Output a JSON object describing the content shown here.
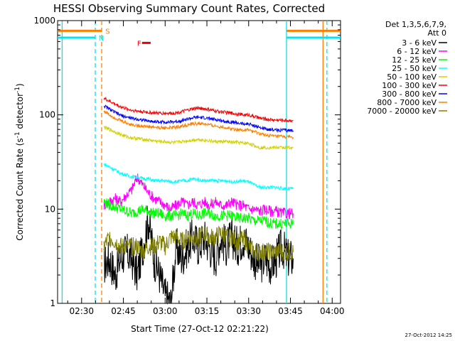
{
  "chart_data": {
    "type": "line",
    "title": "HESSI Observing Summary Count Rates, Corrected",
    "xlabel": "Start Time (27-Oct-12 02:21:22)",
    "ylabel_main": "Corrected Count Rate (s",
    "ylabel_sup": "-1",
    "ylabel_tail": " detector",
    "ylabel_close": ")",
    "timestamp": "27-Oct-2012 14:25",
    "x_start_minutes": 141.37,
    "xlim": [
      141.37,
      243.0
    ],
    "ylim": [
      1,
      1000
    ],
    "ylog": true,
    "x_ticks": [
      {
        "v": 150,
        "label": "02:30"
      },
      {
        "v": 165,
        "label": "02:45"
      },
      {
        "v": 180,
        "label": "03:00"
      },
      {
        "v": 195,
        "label": "03:15"
      },
      {
        "v": 210,
        "label": "03:30"
      },
      {
        "v": 225,
        "label": "03:45"
      },
      {
        "v": 240,
        "label": "04:00"
      }
    ],
    "y_ticks": [
      {
        "v": 1,
        "label": "1"
      },
      {
        "v": 10,
        "label": "10"
      },
      {
        "v": 100,
        "label": "100"
      },
      {
        "v": 1000,
        "label": "1000"
      }
    ],
    "legend_title": [
      "Det 1,3,5,6,7,9,",
      "Att 0"
    ],
    "flags": [
      {
        "label": "S",
        "color": "#ff7f00",
        "segments": [
          [
            141.37,
            157.3
          ],
          [
            223.6,
            243.0
          ]
        ],
        "value": 780
      },
      {
        "label": "N",
        "color": "#00e5ee",
        "segments": [
          [
            141.37,
            155.0
          ],
          [
            223.6,
            243.0
          ]
        ],
        "value": 660
      },
      {
        "label": "F",
        "color": "#ee0000",
        "segments": [
          [
            171.7,
            174.8
          ]
        ],
        "value": 580
      }
    ],
    "gaps": [
      {
        "x": 143.0,
        "color": "#00e5ee",
        "style": "solid"
      },
      {
        "x": 154.9,
        "color": "#00e5ee",
        "style": "dashed"
      },
      {
        "x": 157.2,
        "color": "#ff7f00",
        "style": "dashed"
      },
      {
        "x": 223.6,
        "color": "#00e5ee",
        "style": "solid"
      },
      {
        "x": 236.7,
        "color": "#ff7f00",
        "style": "solid"
      },
      {
        "x": 238.1,
        "color": "#00e5ee",
        "style": "dashed"
      }
    ],
    "series": [
      {
        "name": "3 - 6 keV",
        "color": "#000000",
        "x": [
          158,
          160,
          162,
          164,
          166,
          168,
          170,
          172,
          174,
          176,
          178,
          180,
          182,
          184,
          186,
          188,
          190,
          192,
          194,
          196,
          198,
          200,
          202,
          204,
          206,
          208,
          210,
          212,
          214,
          216,
          218,
          220,
          222,
          224,
          226
        ],
        "values": [
          2.5,
          3,
          2,
          3,
          3.5,
          3,
          2,
          4,
          8,
          3,
          2,
          1.2,
          1,
          4,
          3,
          4,
          5,
          4,
          5,
          4,
          3,
          5,
          4,
          5,
          4,
          5,
          4,
          3,
          2.5,
          3,
          2.5,
          3,
          4,
          3,
          3
        ]
      },
      {
        "name": "6 - 12 keV",
        "color": "#ff00ff",
        "x": [
          158,
          160,
          162,
          164,
          166,
          168,
          170,
          172,
          174,
          176,
          178,
          180,
          182,
          184,
          186,
          188,
          190,
          192,
          194,
          196,
          198,
          200,
          202,
          204,
          206,
          208,
          210,
          212,
          214,
          216,
          218,
          220,
          222,
          224,
          226
        ],
        "values": [
          11,
          12,
          13,
          12,
          14,
          16,
          22,
          18,
          15,
          13,
          12,
          11,
          10,
          11,
          12,
          11,
          12,
          11,
          12,
          11,
          12,
          11,
          11,
          12,
          11,
          11,
          10,
          10,
          9.5,
          10,
          9.5,
          9.5,
          9,
          9,
          9
        ]
      },
      {
        "name": "12 - 25 keV",
        "color": "#00ff00",
        "x": [
          158,
          160,
          162,
          164,
          166,
          168,
          170,
          172,
          174,
          176,
          178,
          180,
          182,
          184,
          186,
          188,
          190,
          192,
          194,
          196,
          198,
          200,
          202,
          204,
          206,
          208,
          210,
          212,
          214,
          216,
          218,
          220,
          222,
          224,
          226
        ],
        "values": [
          12,
          11,
          10.5,
          10,
          9.5,
          9,
          9.5,
          10,
          9.5,
          9,
          9,
          8.5,
          8.5,
          8.5,
          9,
          8.5,
          9,
          8.5,
          9,
          9,
          8.5,
          8.5,
          8.5,
          8.5,
          8,
          8,
          8,
          7.5,
          7.5,
          7.5,
          7,
          7,
          7,
          7,
          7
        ]
      },
      {
        "name": "25 - 50 keV",
        "color": "#00ffff",
        "x": [
          158,
          160,
          162,
          164,
          166,
          168,
          170,
          172,
          174,
          176,
          178,
          180,
          182,
          184,
          186,
          188,
          190,
          192,
          194,
          196,
          198,
          200,
          202,
          204,
          206,
          208,
          210,
          212,
          214,
          216,
          218,
          220,
          222,
          224,
          226
        ],
        "values": [
          30,
          28,
          26,
          24,
          23,
          22,
          22,
          21,
          21,
          20,
          20,
          20,
          19.5,
          19.5,
          20,
          20,
          21,
          20.5,
          20,
          20,
          20,
          20,
          20,
          19.5,
          19.5,
          20,
          19.5,
          18,
          17,
          17,
          17,
          17,
          16.5,
          16.5,
          16.5
        ]
      },
      {
        "name": "50 - 100 keV",
        "color": "#d2d200",
        "x": [
          158,
          160,
          162,
          164,
          166,
          168,
          170,
          172,
          174,
          176,
          178,
          180,
          182,
          184,
          186,
          188,
          190,
          192,
          194,
          196,
          198,
          200,
          202,
          204,
          206,
          208,
          210,
          212,
          214,
          216,
          218,
          220,
          222,
          224,
          226
        ],
        "values": [
          74,
          70,
          66,
          62,
          59,
          57,
          56,
          55,
          54,
          53,
          52,
          52,
          51,
          51,
          52,
          53,
          54,
          55,
          54,
          53,
          52,
          52,
          52,
          51,
          51,
          50,
          50,
          47,
          45,
          45,
          45,
          45,
          45,
          45,
          45
        ]
      },
      {
        "name": "100 - 300 keV",
        "color": "#ff0000",
        "x": [
          158,
          160,
          162,
          164,
          166,
          168,
          170,
          172,
          174,
          176,
          178,
          180,
          182,
          184,
          186,
          188,
          190,
          192,
          194,
          196,
          198,
          200,
          202,
          204,
          206,
          208,
          210,
          212,
          214,
          216,
          218,
          220,
          222,
          224,
          226
        ],
        "values": [
          150,
          140,
          130,
          122,
          116,
          112,
          110,
          108,
          106,
          105,
          104,
          104,
          104,
          105,
          108,
          112,
          116,
          118,
          116,
          113,
          110,
          108,
          106,
          104,
          102,
          100,
          100,
          96,
          92,
          90,
          89,
          88,
          88,
          87,
          88
        ]
      },
      {
        "name": "300 - 800 keV",
        "color": "#0000ff",
        "x": [
          158,
          160,
          162,
          164,
          166,
          168,
          170,
          172,
          174,
          176,
          178,
          180,
          182,
          184,
          186,
          188,
          190,
          192,
          194,
          196,
          198,
          200,
          202,
          204,
          206,
          208,
          210,
          212,
          214,
          216,
          218,
          220,
          222,
          224,
          226
        ],
        "values": [
          125,
          115,
          106,
          99,
          95,
          92,
          90,
          88,
          86,
          85,
          84,
          84,
          84,
          85,
          87,
          90,
          93,
          94,
          93,
          91,
          89,
          87,
          85,
          84,
          82,
          80,
          80,
          77,
          73,
          71,
          70,
          69,
          69,
          68,
          68
        ]
      },
      {
        "name": "800 - 7000 keV",
        "color": "#ff7f00",
        "x": [
          158,
          160,
          162,
          164,
          166,
          168,
          170,
          172,
          174,
          176,
          178,
          180,
          182,
          184,
          186,
          188,
          190,
          192,
          194,
          196,
          198,
          200,
          202,
          204,
          206,
          208,
          210,
          212,
          214,
          216,
          218,
          220,
          222,
          224,
          226
        ],
        "values": [
          110,
          100,
          93,
          87,
          82,
          79,
          77,
          76,
          75,
          74,
          73,
          73,
          73,
          74,
          76,
          78,
          80,
          81,
          80,
          78,
          76,
          75,
          73,
          71,
          70,
          69,
          69,
          66,
          63,
          61,
          60,
          59,
          59,
          58,
          58
        ]
      },
      {
        "name": "7000 - 20000 keV",
        "color": "#808000",
        "x": [
          158,
          160,
          162,
          164,
          166,
          168,
          170,
          172,
          174,
          176,
          178,
          180,
          182,
          184,
          186,
          188,
          190,
          192,
          194,
          196,
          198,
          200,
          202,
          204,
          206,
          208,
          210,
          212,
          214,
          216,
          218,
          220,
          222,
          224,
          226
        ],
        "values": [
          4,
          5,
          4.5,
          4,
          4,
          4,
          4,
          3.5,
          4,
          4,
          4.5,
          4,
          5,
          5,
          4.5,
          5,
          5,
          5,
          5.5,
          5,
          5,
          5.5,
          5,
          5,
          4.5,
          5,
          4,
          3.5,
          3.5,
          3.5,
          3.5,
          3.5,
          3.5,
          3.5,
          3.5
        ]
      }
    ]
  }
}
